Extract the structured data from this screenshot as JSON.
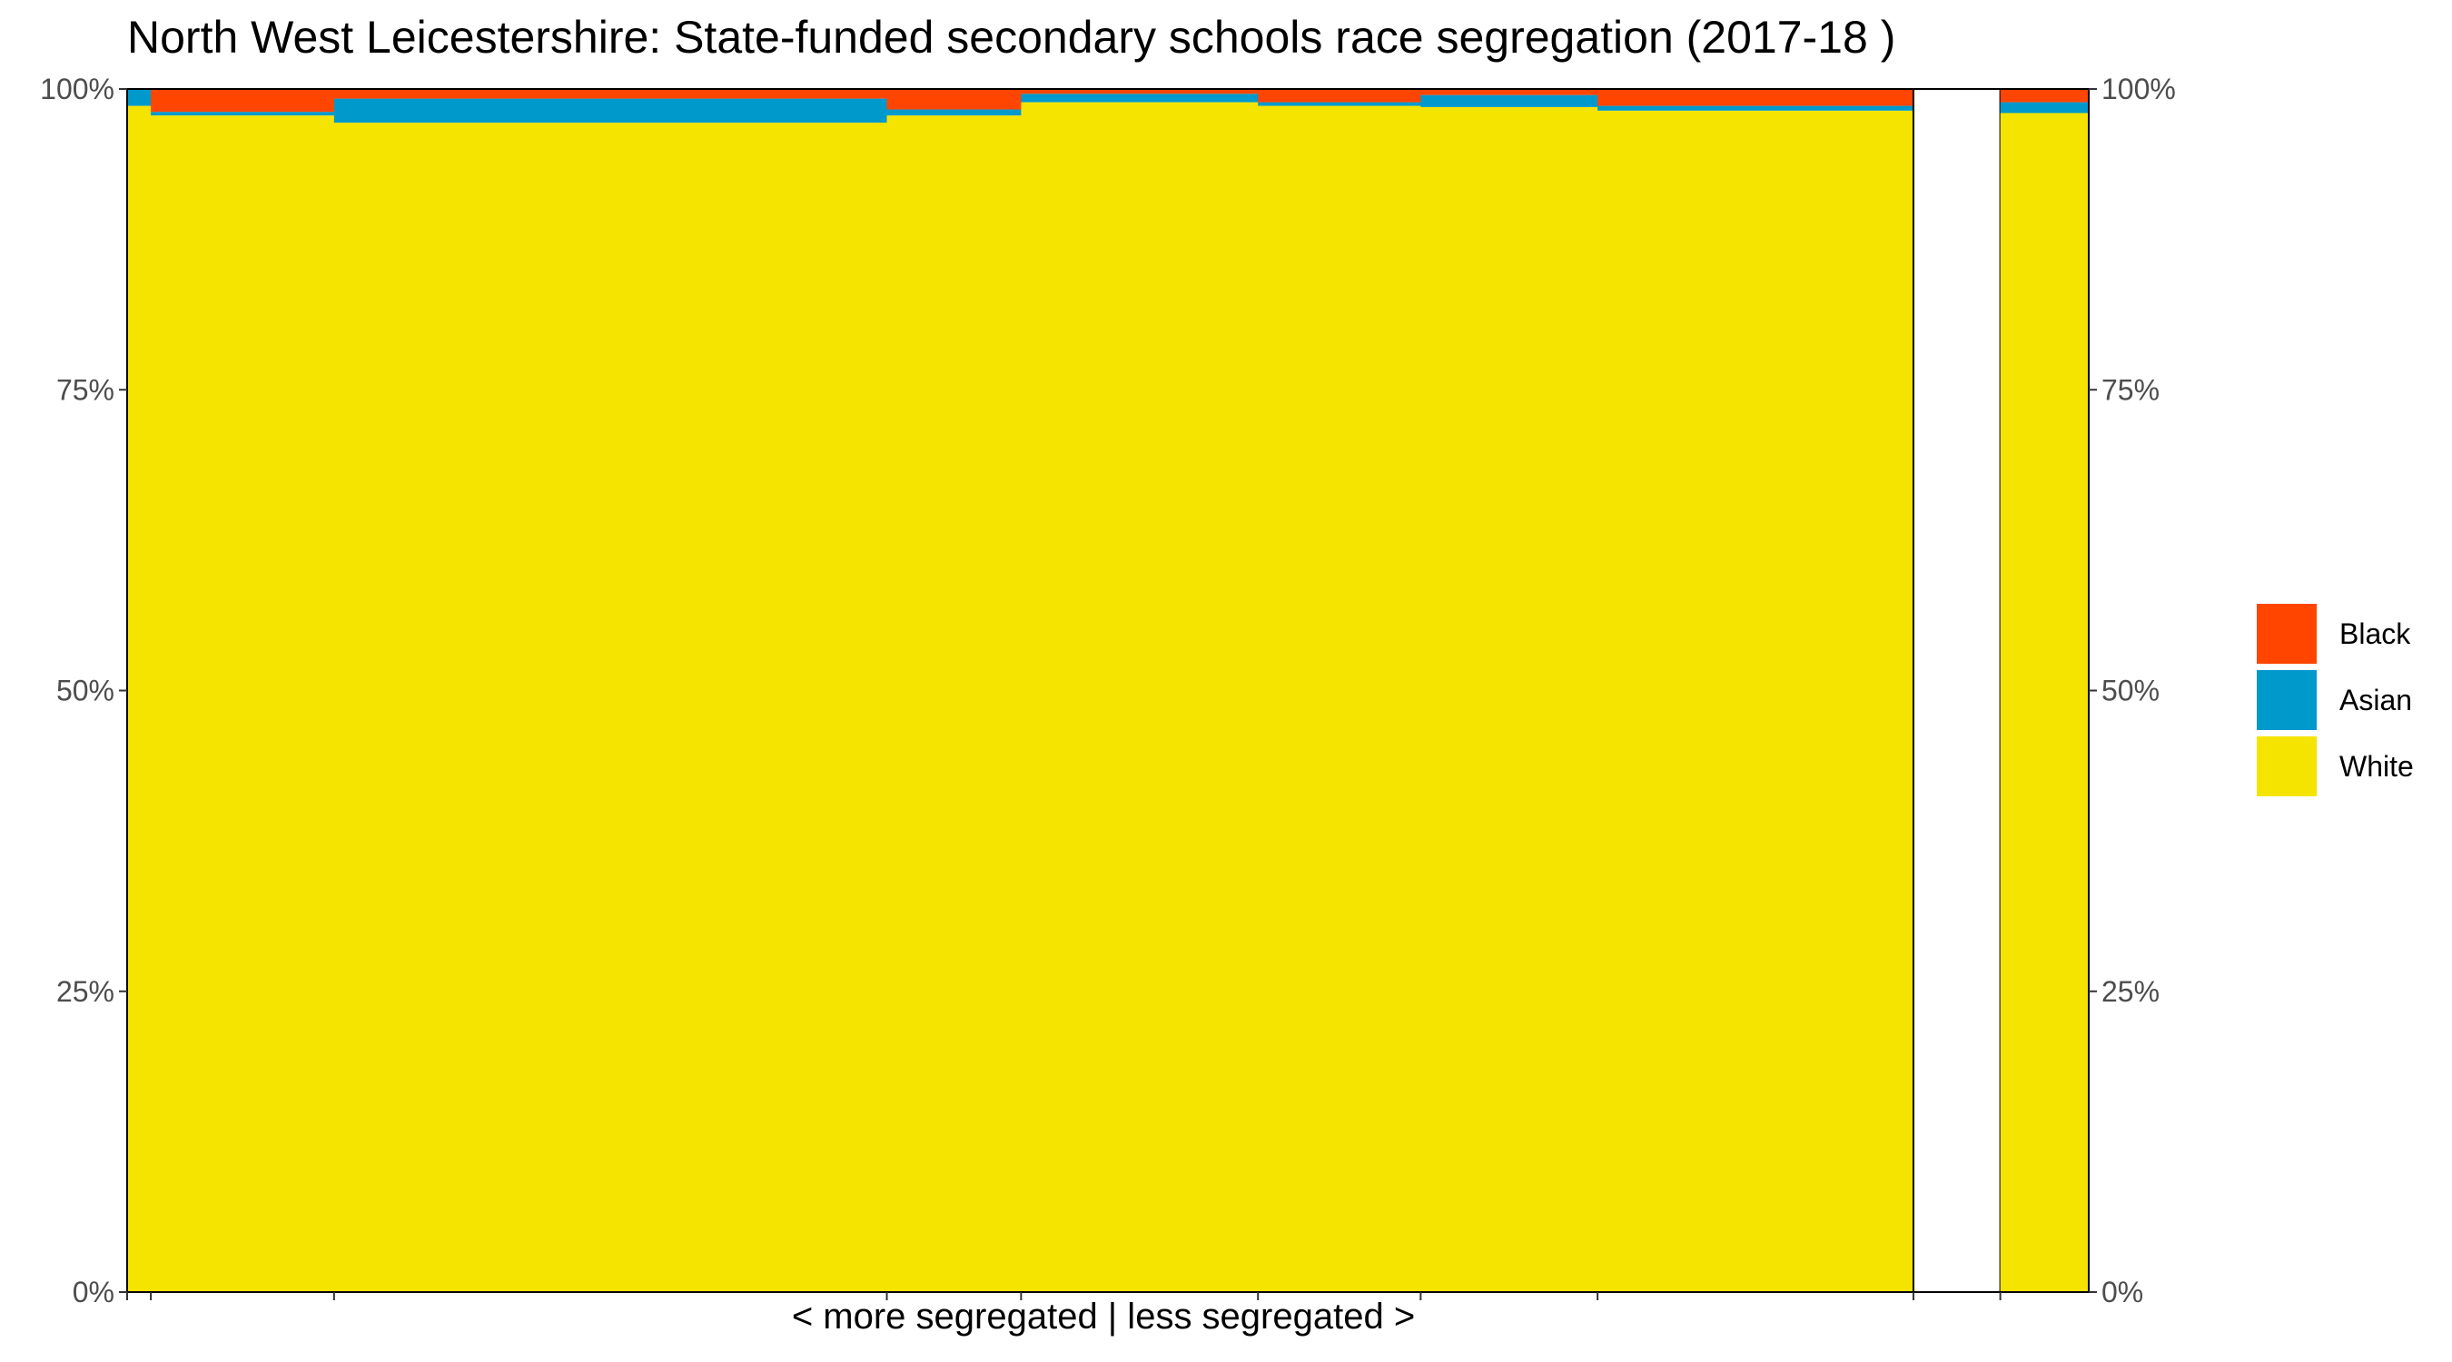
{
  "chart_data": {
    "type": "bar",
    "title": "North West Leicestershire: State-funded secondary schools race segregation (2017-18 )",
    "xlabel": "< more segregated | less segregated >",
    "ylabel": "",
    "ylim": [
      0,
      1
    ],
    "y_ticks": [
      "0%",
      "25%",
      "50%",
      "75%",
      "100%"
    ],
    "y_axis_right": true,
    "grid": false,
    "legend_position": "right",
    "colors": {
      "Black": "#FF4500",
      "Asian": "#0099CC",
      "White": "#F5E400"
    },
    "legend": [
      "Black",
      "Asian",
      "White"
    ],
    "schools": [
      {
        "width": 0.15,
        "White": 0.986,
        "Asian": 0.014,
        "Black": 0.0,
        "gap": false
      },
      {
        "width": 1.16,
        "White": 0.978,
        "Asian": 0.003,
        "Black": 0.019,
        "gap": false
      },
      {
        "width": 3.5,
        "White": 0.972,
        "Asian": 0.02,
        "Black": 0.008,
        "gap": false
      },
      {
        "width": 0.85,
        "White": 0.978,
        "Asian": 0.005,
        "Black": 0.017,
        "gap": false
      },
      {
        "width": 1.5,
        "White": 0.989,
        "Asian": 0.007,
        "Black": 0.004,
        "gap": false
      },
      {
        "width": 1.03,
        "White": 0.986,
        "Asian": 0.003,
        "Black": 0.011,
        "gap": false
      },
      {
        "width": 1.12,
        "White": 0.985,
        "Asian": 0.01,
        "Black": 0.005,
        "gap": false
      },
      {
        "width": 2.0,
        "White": 0.982,
        "Asian": 0.004,
        "Black": 0.014,
        "gap": false
      },
      {
        "width": 0.55,
        "White": 0.0,
        "Asian": 0.0,
        "Black": 0.0,
        "gap": true
      },
      {
        "width": 0.56,
        "White": 0.98,
        "Asian": 0.009,
        "Black": 0.011,
        "gap": false
      }
    ]
  }
}
